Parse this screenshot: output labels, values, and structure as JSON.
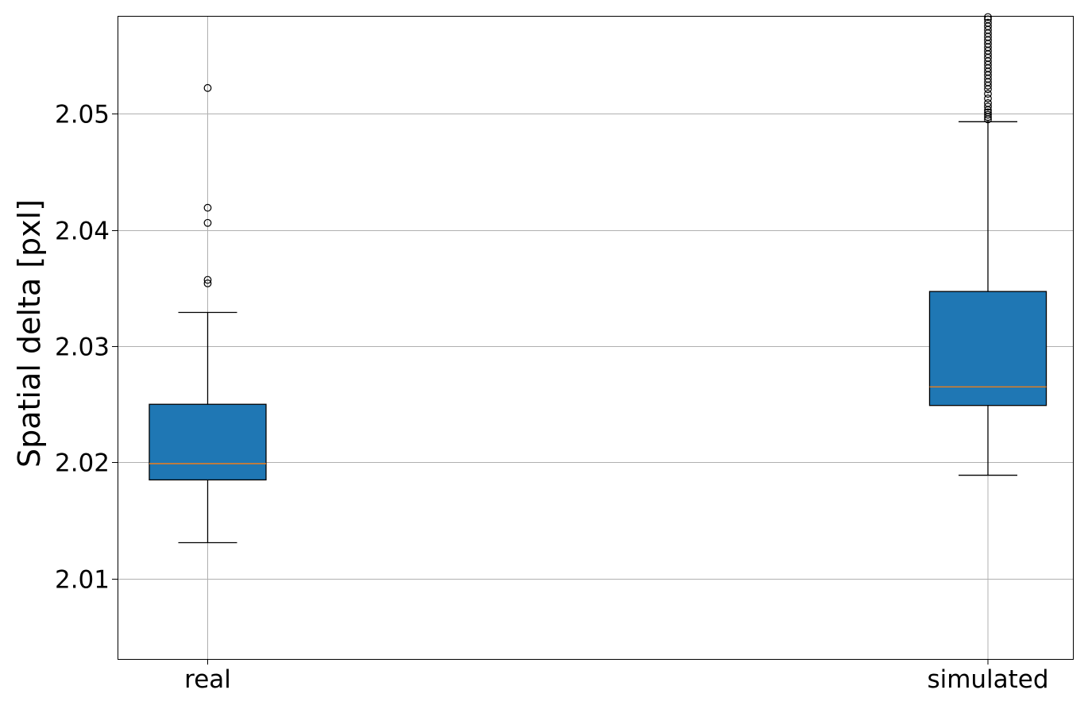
{
  "chart_data": {
    "type": "boxplot",
    "title": "",
    "xlabel": "",
    "ylabel": "Spatial delta [pxl]",
    "ylim": [
      2.0031,
      2.0584
    ],
    "yticks": [
      2.01,
      2.02,
      2.03,
      2.04,
      2.05
    ],
    "ytick_labels": [
      "2.01",
      "2.02",
      "2.03",
      "2.04",
      "2.05"
    ],
    "grid": true,
    "categories": [
      "real",
      "simulated"
    ],
    "boxes": [
      {
        "name": "real",
        "whisker_low": 2.0131,
        "q1": 2.0185,
        "median": 2.0199,
        "q3": 2.025,
        "whisker_high": 2.0329,
        "outliers": [
          2.0354,
          2.0357,
          2.0406,
          2.0419,
          2.0522
        ]
      },
      {
        "name": "simulated",
        "whisker_low": 2.0189,
        "q1": 2.0249,
        "median": 2.0265,
        "q3": 2.0347,
        "whisker_high": 2.0493,
        "outliers": [
          2.0495,
          2.0497,
          2.0499,
          2.0501,
          2.0503,
          2.0506,
          2.0509,
          2.0513,
          2.0517,
          2.0521,
          2.0524,
          2.0527,
          2.053,
          2.0533,
          2.0536,
          2.0539,
          2.0542,
          2.0545,
          2.0548,
          2.0551,
          2.0554,
          2.0557,
          2.056,
          2.0563,
          2.0566,
          2.0569,
          2.0572,
          2.0575,
          2.0578,
          2.0581,
          2.0583
        ]
      }
    ],
    "colors": {
      "box_fill": "#1f77b4",
      "median": "#ff7f0e",
      "edge": "#000000",
      "grid": "#b0b0b0"
    }
  }
}
